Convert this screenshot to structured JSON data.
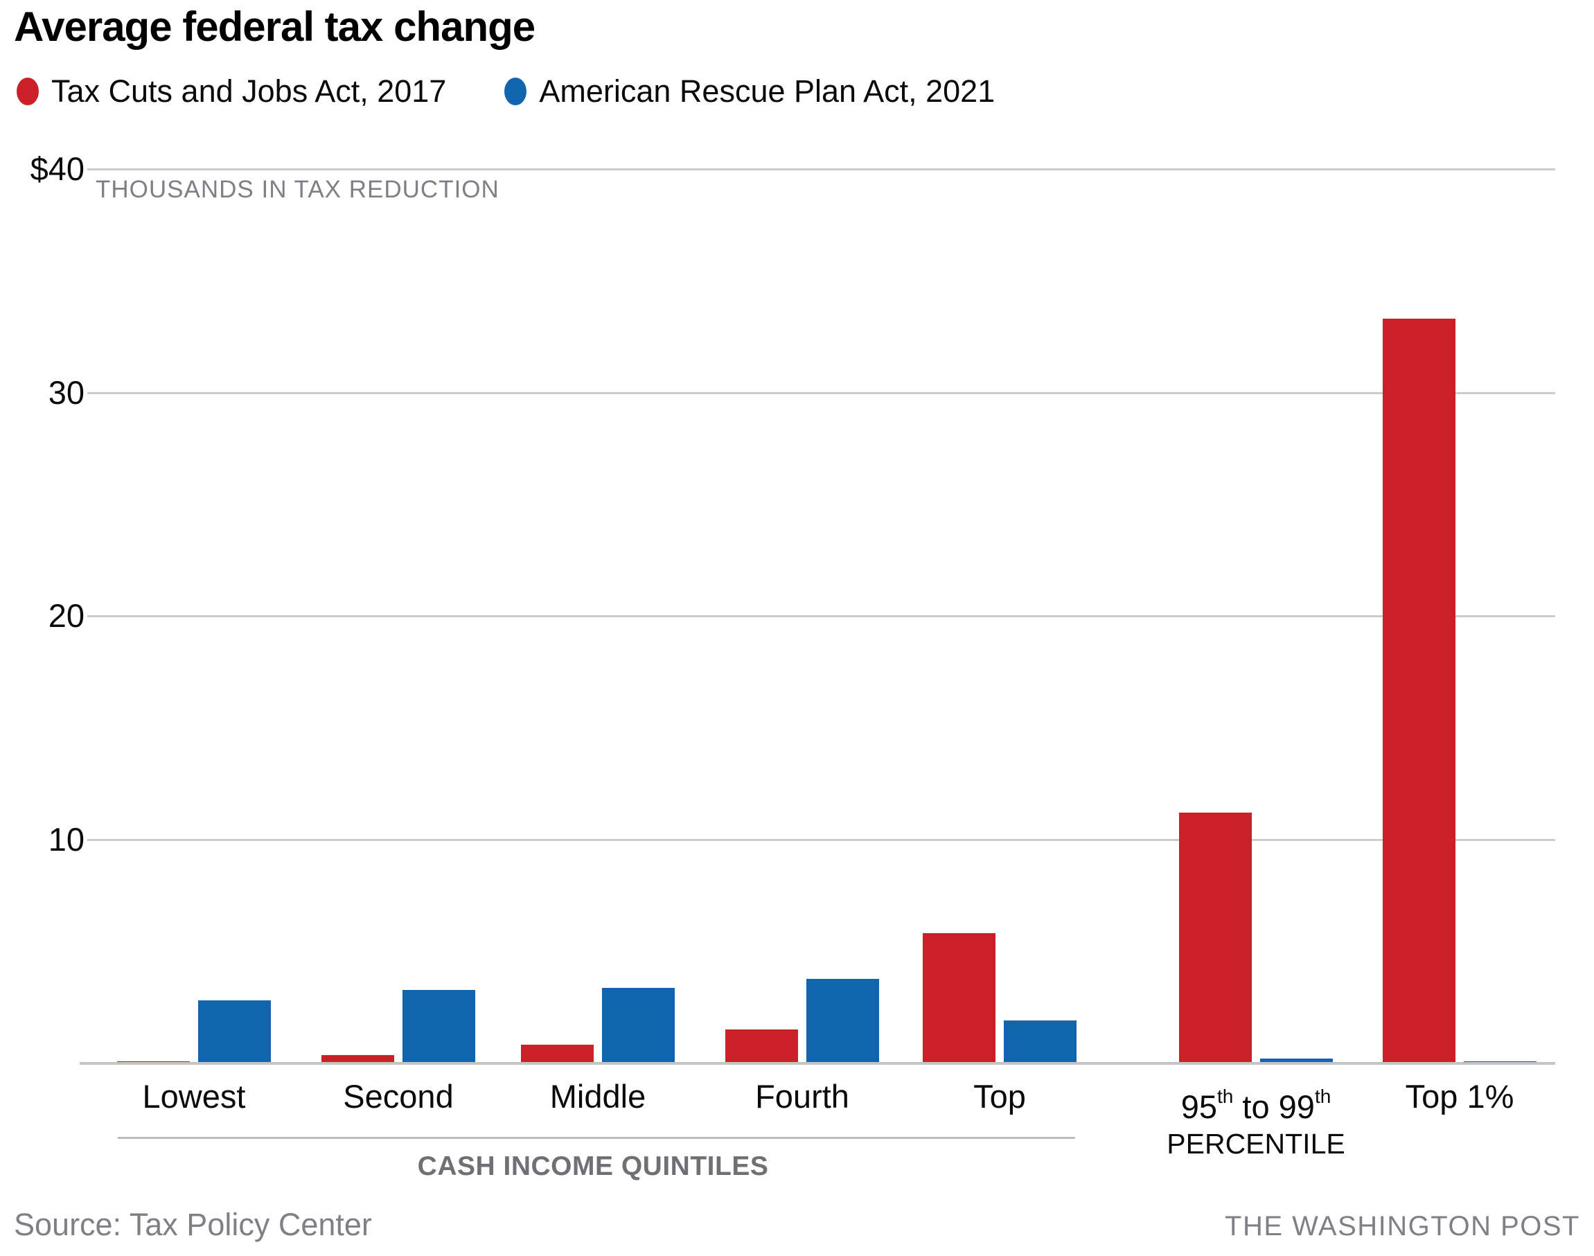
{
  "title": "Average federal tax change",
  "legend": [
    {
      "name": "Tax Cuts and Jobs Act, 2017",
      "color": "#ca2128"
    },
    {
      "name": "American Rescue Plan Act, 2021",
      "color": "#1165af"
    }
  ],
  "axis_note": "THOUSANDS IN TAX REDUCTION",
  "x_axis_caption": "CASH INCOME QUINTILES",
  "source": "Source: Tax Policy Center",
  "attribution": "THE WASHINGTON POST",
  "chart_data": {
    "type": "bar",
    "title": "Average federal tax change",
    "ylabel": "THOUSANDS IN TAX REDUCTION",
    "xlabel": "CASH INCOME QUINTILES",
    "ylim": [
      0,
      40
    ],
    "grid": true,
    "legend_position": "top",
    "y_ticks": [
      {
        "label": "$40",
        "value": 40
      },
      {
        "label": "30",
        "value": 30
      },
      {
        "label": "20",
        "value": 20
      },
      {
        "label": "10",
        "value": 10
      }
    ],
    "categories": [
      {
        "label": "Lowest"
      },
      {
        "label": "Second"
      },
      {
        "label": "Middle"
      },
      {
        "label": "Fourth"
      },
      {
        "label": "Top"
      },
      {
        "label": "95th to 99th",
        "line1_parts": [
          "95",
          "th",
          " to 99",
          "th"
        ],
        "line2": "PERCENTILE"
      },
      {
        "label": "Top 1%"
      }
    ],
    "series": [
      {
        "name": "Tax Cuts and Jobs Act, 2017",
        "color": "#ca2128",
        "values": [
          0.07,
          0.35,
          0.8,
          1.5,
          5.8,
          11.2,
          33.3
        ]
      },
      {
        "name": "American Rescue Plan Act, 2021",
        "color": "#1165af",
        "values": [
          2.8,
          3.25,
          3.35,
          3.75,
          1.9,
          0.2,
          0.06
        ]
      }
    ]
  }
}
